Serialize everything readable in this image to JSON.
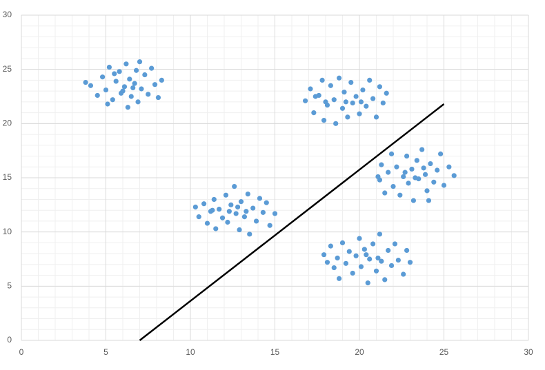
{
  "chart_data": {
    "type": "scatter",
    "xlim": [
      0,
      30
    ],
    "xticks": [
      0,
      5,
      10,
      15,
      20,
      25,
      30
    ],
    "ylim": [
      0,
      30
    ],
    "yticks": [
      0,
      5,
      10,
      15,
      20,
      25,
      30
    ],
    "grid": true,
    "minor_grid": true,
    "series": [
      {
        "color": "#5b9bd5",
        "x": [
          4.1,
          4.5,
          4.8,
          5.0,
          5.2,
          5.4,
          5.6,
          5.8,
          5.9,
          6.1,
          6.2,
          6.3,
          6.4,
          6.5,
          6.7,
          6.8,
          6.9,
          7.1,
          7.3,
          7.5,
          7.7,
          7.9,
          8.1,
          8.3,
          3.8,
          5.1,
          6.0,
          7.0,
          5.5,
          6.6
        ],
        "values": [
          23.5,
          22.6,
          24.3,
          23.1,
          25.2,
          22.2,
          23.9,
          24.8,
          22.8,
          23.4,
          25.5,
          21.5,
          24.1,
          22.5,
          23.7,
          24.9,
          22.0,
          23.2,
          24.5,
          22.7,
          25.1,
          23.6,
          22.4,
          24.0,
          23.8,
          21.8,
          23.0,
          25.7,
          24.6,
          23.3
        ]
      },
      {
        "color": "#5b9bd5",
        "x": [
          16.8,
          17.1,
          17.3,
          17.6,
          17.8,
          17.9,
          18.1,
          18.3,
          18.5,
          18.6,
          18.8,
          19.0,
          19.1,
          19.3,
          19.5,
          19.6,
          19.8,
          20.0,
          20.2,
          20.4,
          20.6,
          20.8,
          21.0,
          21.2,
          21.4,
          21.6,
          18.0,
          19.2,
          20.1,
          17.4
        ],
        "values": [
          22.1,
          23.2,
          21.0,
          22.6,
          24.0,
          20.3,
          21.7,
          23.5,
          22.2,
          20.0,
          24.2,
          21.4,
          22.9,
          20.6,
          23.8,
          21.9,
          22.5,
          20.9,
          23.1,
          21.6,
          24.0,
          22.3,
          20.6,
          23.4,
          21.9,
          22.8,
          22.0,
          22.0,
          22.0,
          22.5
        ]
      },
      {
        "color": "#5b9bd5",
        "x": [
          21.2,
          21.3,
          21.5,
          21.7,
          21.9,
          22.0,
          22.2,
          22.4,
          22.6,
          22.8,
          22.9,
          23.1,
          23.2,
          23.4,
          23.5,
          23.7,
          23.9,
          24.0,
          24.2,
          24.4,
          24.6,
          24.8,
          25.0,
          25.3,
          25.6,
          22.7,
          23.3,
          23.8,
          24.1,
          21.1
        ],
        "values": [
          14.8,
          16.2,
          13.6,
          15.5,
          17.2,
          14.2,
          16.0,
          13.4,
          15.1,
          17.0,
          14.5,
          15.8,
          12.9,
          16.6,
          14.9,
          17.6,
          15.3,
          13.8,
          16.3,
          14.6,
          15.7,
          17.2,
          14.3,
          16.0,
          15.2,
          15.5,
          15.0,
          15.9,
          12.9,
          15.1
        ]
      },
      {
        "color": "#5b9bd5",
        "x": [
          10.3,
          10.5,
          10.8,
          11.0,
          11.2,
          11.4,
          11.5,
          11.7,
          11.9,
          12.1,
          12.2,
          12.4,
          12.6,
          12.7,
          12.9,
          13.0,
          13.2,
          13.4,
          13.5,
          13.7,
          13.9,
          14.1,
          14.3,
          14.5,
          14.7,
          15.0,
          12.3,
          12.8,
          13.3,
          11.3
        ],
        "values": [
          12.3,
          11.4,
          12.6,
          10.8,
          11.9,
          13.0,
          10.3,
          12.1,
          11.3,
          13.4,
          10.9,
          12.5,
          14.2,
          11.7,
          10.2,
          12.8,
          11.4,
          13.5,
          9.8,
          12.2,
          11.0,
          13.1,
          11.8,
          12.7,
          10.6,
          11.7,
          11.9,
          12.3,
          11.9,
          12.0
        ]
      },
      {
        "color": "#5b9bd5",
        "x": [
          17.9,
          18.1,
          18.3,
          18.5,
          18.7,
          18.8,
          19.0,
          19.2,
          19.4,
          19.6,
          19.8,
          20.0,
          20.1,
          20.3,
          20.5,
          20.6,
          20.8,
          21.0,
          21.2,
          21.3,
          21.5,
          21.7,
          21.9,
          22.1,
          22.3,
          22.6,
          22.8,
          23.0,
          20.4,
          21.1
        ],
        "values": [
          7.9,
          7.2,
          8.7,
          6.7,
          7.6,
          5.7,
          9.0,
          7.1,
          8.2,
          6.2,
          7.8,
          9.4,
          6.8,
          8.4,
          5.3,
          7.5,
          8.9,
          6.4,
          9.8,
          7.3,
          5.6,
          8.3,
          6.9,
          8.9,
          7.4,
          6.1,
          8.3,
          7.2,
          7.9,
          7.6
        ]
      },
      {
        "type": "line",
        "color": "#000000",
        "x": [
          7,
          25
        ],
        "values": [
          0,
          21.8
        ]
      }
    ]
  }
}
